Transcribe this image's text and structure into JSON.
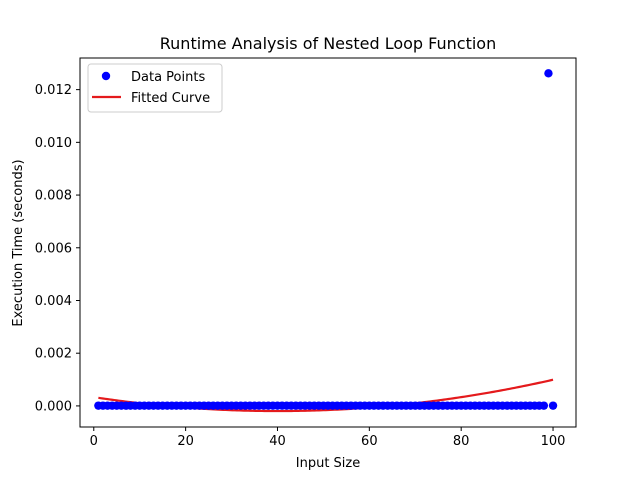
{
  "chart_data": {
    "type": "scatter",
    "title": "Runtime Analysis of Nested Loop Function",
    "xlabel": "Input Size",
    "ylabel": "Execution Time (seconds)",
    "xlim": [
      -3,
      105
    ],
    "ylim": [
      -0.0008,
      0.0132
    ],
    "xticks": [
      0,
      20,
      40,
      60,
      80,
      100
    ],
    "yticks": [
      0.0,
      0.002,
      0.004,
      0.006,
      0.008,
      0.01,
      0.012
    ],
    "ytick_labels": [
      "0.000",
      "0.002",
      "0.004",
      "0.006",
      "0.008",
      "0.010",
      "0.012"
    ],
    "grid": false,
    "legend": {
      "placement": "top-left"
    },
    "series": [
      {
        "name": "Data Points",
        "kind": "scatter",
        "color": "#0000ff",
        "x_start": 1,
        "x_end": 100,
        "x_step": 1,
        "baseline_value": 1e-05,
        "outliers": [
          {
            "x": 99,
            "y": 0.01262
          }
        ]
      },
      {
        "name": "Fitted Curve",
        "kind": "line",
        "color": "#e41a1c",
        "x_range": [
          1,
          100
        ],
        "quadratic_fit": {
          "a": 3.3e-07,
          "b": -2.64e-05,
          "c": 0.000333
        }
      }
    ]
  }
}
